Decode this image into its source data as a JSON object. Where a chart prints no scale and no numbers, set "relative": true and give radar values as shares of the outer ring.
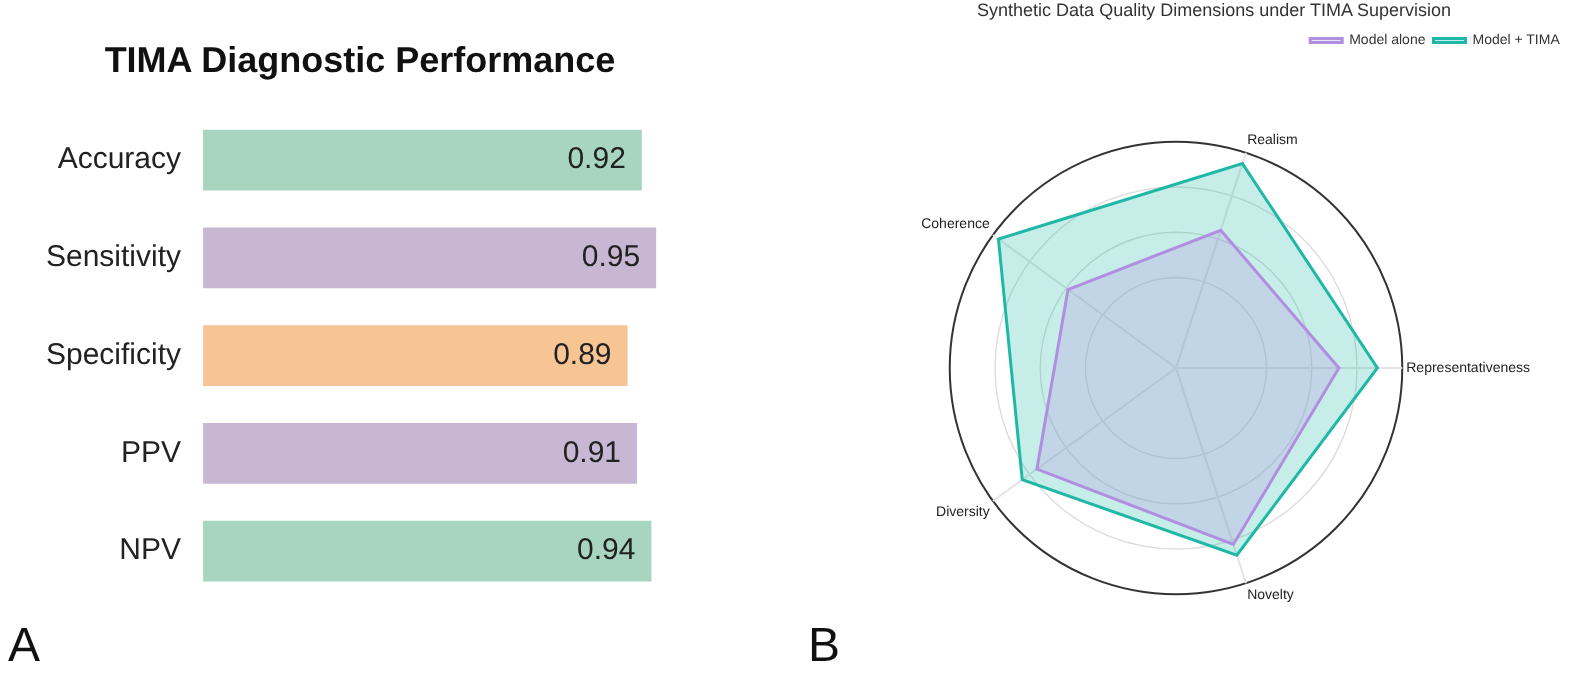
{
  "chart_data": [
    {
      "type": "bar",
      "orientation": "horizontal",
      "title": "TIMA Diagnostic Performance",
      "categories": [
        "Accuracy",
        "Sensitivity",
        "Specificity",
        "PPV",
        "NPV"
      ],
      "values": [
        0.92,
        0.95,
        0.89,
        0.91,
        0.94
      ],
      "colors": [
        "#a8d5c0",
        "#c7b7d3",
        "#f7c594",
        "#c7b7d3",
        "#a8d5c0"
      ],
      "data_labels": true,
      "legend": false,
      "grid": false,
      "tick_labels": "y",
      "annotations": [
        "A"
      ]
    },
    {
      "type": "radar",
      "title": "Synthetic Data Quality Dimensions under TIMA Supervision",
      "categories": [
        "Realism",
        "Representativeness",
        "Novelty",
        "Diversity",
        "Coherence"
      ],
      "relative": true,
      "grid": true,
      "legend": "top right",
      "marker": "none",
      "series": [
        {
          "name": "Model alone",
          "color": "#b08ee0",
          "values": [
            0.64,
            0.72,
            0.82,
            0.76,
            0.59
          ]
        },
        {
          "name": "Model + TIMA",
          "color": "#1fb8a6",
          "values": [
            0.95,
            0.89,
            0.87,
            0.84,
            0.97
          ]
        }
      ],
      "annotations": [
        "B"
      ]
    }
  ]
}
